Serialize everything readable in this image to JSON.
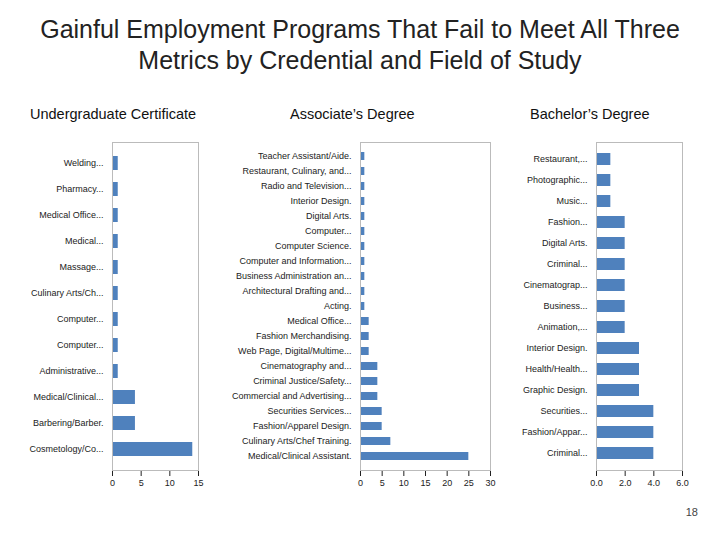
{
  "title": "Gainful Employment Programs That Fail to Meet All Three Metrics by Credential and Field of Study",
  "page_number": 18,
  "chart_data": [
    {
      "type": "bar",
      "title": "Undergraduate Certificate",
      "orientation": "horizontal",
      "color": "#4f81bd",
      "categories": [
        "Welding...",
        "Pharmacy...",
        "Medical Office...",
        "Medical...",
        "Massage...",
        "Culinary Arts/Ch...",
        "Computer...",
        "Computer...",
        "Administrative...",
        "Medical/Clinical...",
        "Barbering/Barber.",
        "Cosmetology/Co..."
      ],
      "values": [
        1,
        1,
        1,
        1,
        1,
        1,
        1,
        1,
        1,
        4,
        4,
        14
      ],
      "xlim": [
        0,
        15
      ],
      "xticks": [
        0,
        5,
        10,
        15
      ],
      "grid": false
    },
    {
      "type": "bar",
      "title": "Associate’s Degree",
      "orientation": "horizontal",
      "color": "#4f81bd",
      "categories": [
        "Teacher Assistant/Aide.",
        "Restaurant, Culinary, and...",
        "Radio and Television...",
        "Interior Design.",
        "Digital Arts.",
        "Computer...",
        "Computer Science.",
        "Computer and Information...",
        "Business Administration an...",
        "Architectural Drafting and...",
        "Acting.",
        "Medical Office...",
        "Fashion Merchandising.",
        "Web Page, Digital/Multime...",
        "Cinematography and...",
        "Criminal Justice/Safety...",
        "Commercial and Advertising...",
        "Securities Services...",
        "Fashion/Apparel Design.",
        "Culinary Arts/Chef Training.",
        "Medical/Clinical Assistant."
      ],
      "values": [
        1,
        1,
        1,
        1,
        1,
        1,
        1,
        1,
        1,
        1,
        1,
        2,
        2,
        2,
        4,
        4,
        4,
        5,
        5,
        7,
        25
      ],
      "xlim": [
        0,
        30
      ],
      "xticks": [
        0,
        5,
        10,
        15,
        20,
        25,
        30
      ],
      "grid": false
    },
    {
      "type": "bar",
      "title": "Bachelor’s Degree",
      "orientation": "horizontal",
      "color": "#4f81bd",
      "categories": [
        "Restaurant,...",
        "Photographic...",
        "Music...",
        "Fashion...",
        "Digital Arts.",
        "Criminal...",
        "Cinematograp...",
        "Business...",
        "Animation,...",
        "Interior Design.",
        "Health/Health...",
        "Graphic Design.",
        "Securities...",
        "Fashion/Appar...",
        "Criminal..."
      ],
      "values": [
        1,
        1,
        1,
        2,
        2,
        2,
        2,
        2,
        2,
        3,
        3,
        3,
        4,
        4,
        4
      ],
      "xlim": [
        0,
        6
      ],
      "xticks": [
        0,
        2,
        4,
        6
      ],
      "grid": false
    }
  ]
}
